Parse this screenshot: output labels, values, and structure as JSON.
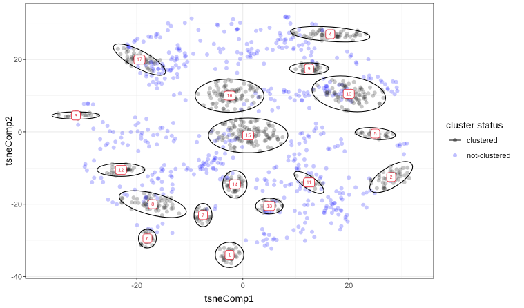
{
  "chart_data": {
    "type": "scatter",
    "title": "",
    "xlabel": "tsneComp1",
    "ylabel": "tsneComp2",
    "xlim": [
      -41,
      36
    ],
    "ylim": [
      -40.5,
      35.5
    ],
    "x_ticks": [
      -20,
      0,
      20
    ],
    "y_ticks": [
      -40,
      -20,
      0,
      20
    ],
    "grid": true,
    "legend": {
      "title": "cluster status",
      "position": "right",
      "entries": [
        {
          "label": "clustered",
          "color": "#000000"
        },
        {
          "label": "not-clustered",
          "color": "#0000ff"
        }
      ]
    },
    "point_opacity": 0.22,
    "clusters": [
      {
        "label": "1",
        "center": [
          -2.5,
          -34
        ],
        "rx": 2.7,
        "ry": 3.5,
        "angle": 0,
        "n": 35
      },
      {
        "label": "2",
        "center": [
          28,
          -12.5
        ],
        "rx": 4.6,
        "ry": 2.8,
        "angle": 32,
        "n": 45
      },
      {
        "label": "3",
        "center": [
          -31.5,
          4.5
        ],
        "rx": 4.5,
        "ry": 1.0,
        "angle": 0,
        "n": 25
      },
      {
        "label": "4",
        "center": [
          16.5,
          27
        ],
        "rx": 7.5,
        "ry": 2.0,
        "angle": -4,
        "n": 60
      },
      {
        "label": "5",
        "center": [
          25,
          -0.5
        ],
        "rx": 3.8,
        "ry": 1.6,
        "angle": -5,
        "n": 25
      },
      {
        "label": "6",
        "center": [
          -18,
          -29.5
        ],
        "rx": 1.7,
        "ry": 2.6,
        "angle": 0,
        "n": 25
      },
      {
        "label": "7",
        "center": [
          -7.5,
          -23
        ],
        "rx": 1.7,
        "ry": 3.2,
        "angle": 0,
        "n": 30
      },
      {
        "label": "8",
        "center": [
          -17,
          -20
        ],
        "rx": 6.5,
        "ry": 3.0,
        "angle": -14,
        "n": 60
      },
      {
        "label": "9",
        "center": [
          12.5,
          17.5
        ],
        "rx": 3.7,
        "ry": 1.6,
        "angle": 0,
        "n": 35
      },
      {
        "label": "10",
        "center": [
          20,
          10.5
        ],
        "rx": 7.0,
        "ry": 4.8,
        "angle": -8,
        "n": 80
      },
      {
        "label": "11",
        "center": [
          12.5,
          -14
        ],
        "rx": 3.3,
        "ry": 1.7,
        "angle": -34,
        "n": 25
      },
      {
        "label": "12",
        "center": [
          -23,
          -10.5
        ],
        "rx": 4.5,
        "ry": 1.8,
        "angle": 0,
        "n": 35
      },
      {
        "label": "13",
        "center": [
          5,
          -20.5
        ],
        "rx": 2.6,
        "ry": 2.2,
        "angle": 0,
        "n": 25
      },
      {
        "label": "14",
        "center": [
          -1.5,
          -14.5
        ],
        "rx": 2.3,
        "ry": 3.8,
        "angle": 0,
        "n": 35
      },
      {
        "label": "15",
        "center": [
          1,
          -1
        ],
        "rx": 7.5,
        "ry": 4.8,
        "angle": 0,
        "n": 120
      },
      {
        "label": "16",
        "center": [
          -2.5,
          10
        ],
        "rx": 6.5,
        "ry": 4.6,
        "angle": 0,
        "n": 90
      },
      {
        "label": "17",
        "center": [
          -19.5,
          20
        ],
        "rx": 5.5,
        "ry": 2.4,
        "angle": -28,
        "n": 50
      }
    ],
    "not_clustered_region": {
      "x_range": [
        -32,
        31
      ],
      "y_range": [
        -36,
        32
      ],
      "n": 650
    }
  }
}
